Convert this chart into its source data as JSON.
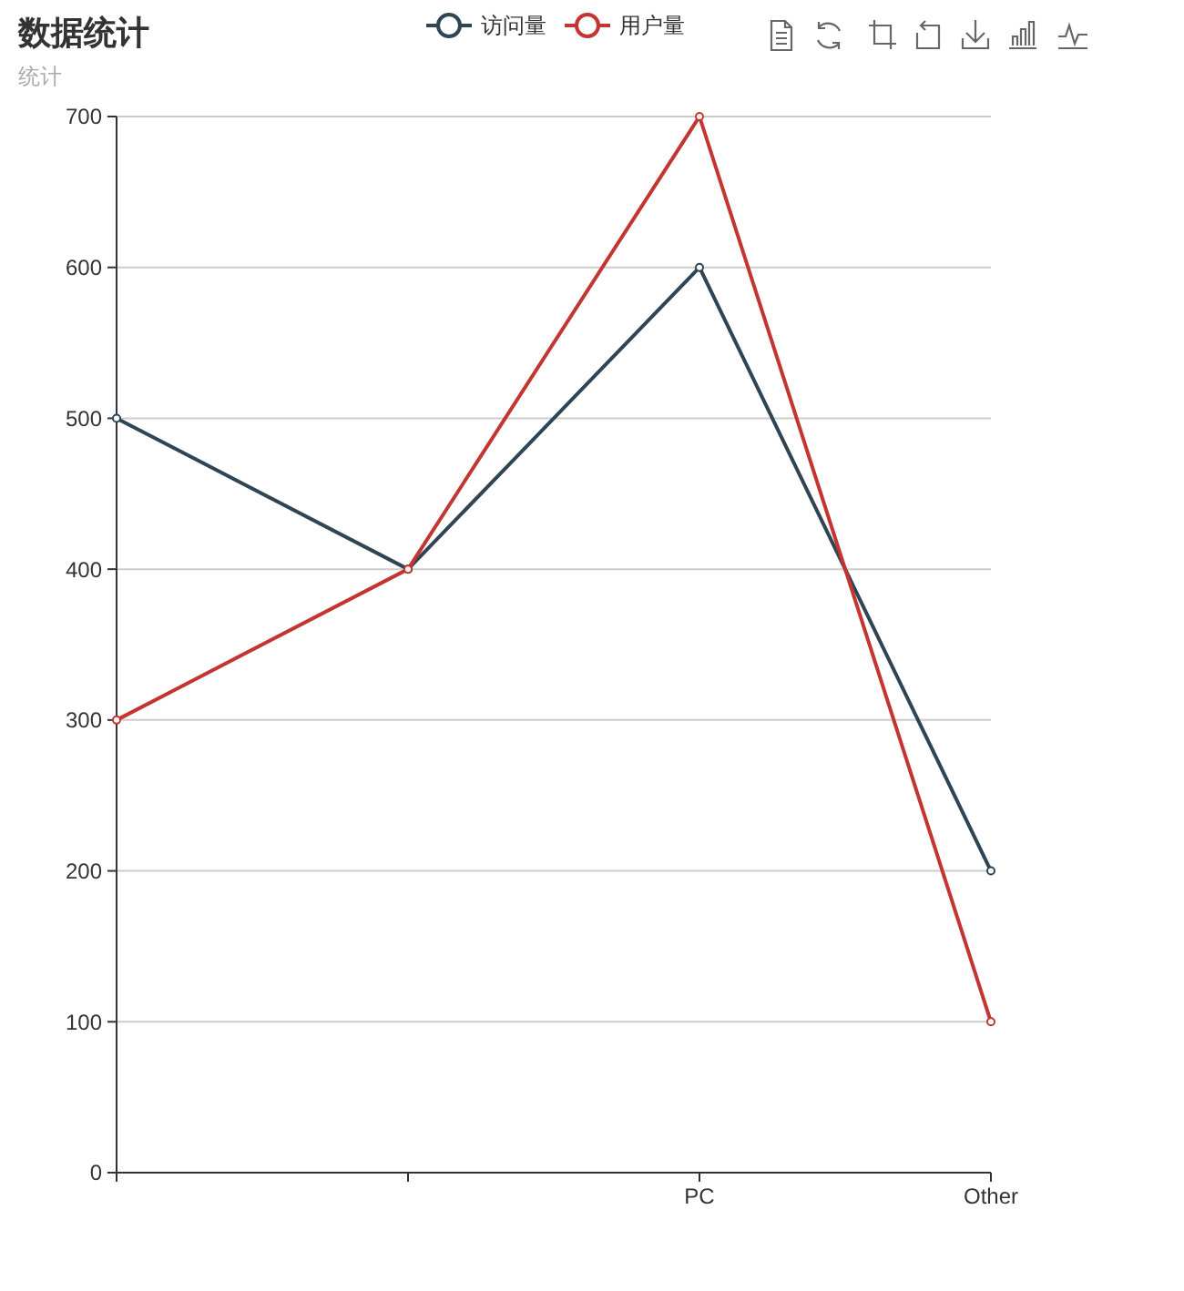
{
  "chart_data": {
    "type": "line",
    "title": "数据统计",
    "subtitle": "统计",
    "categories": [
      null,
      null,
      "PC",
      "Other"
    ],
    "series": [
      {
        "name": "访问量",
        "color": "#2f4554",
        "values": [
          500,
          400,
          600,
          200
        ]
      },
      {
        "name": "用户量",
        "color": "#c23531",
        "values": [
          300,
          400,
          700,
          100
        ]
      }
    ],
    "ylim": [
      0,
      700
    ],
    "yticks": [
      0,
      100,
      200,
      300,
      400,
      500,
      600,
      700
    ],
    "grid": "y",
    "legend": "top",
    "marker": "circle"
  }
}
